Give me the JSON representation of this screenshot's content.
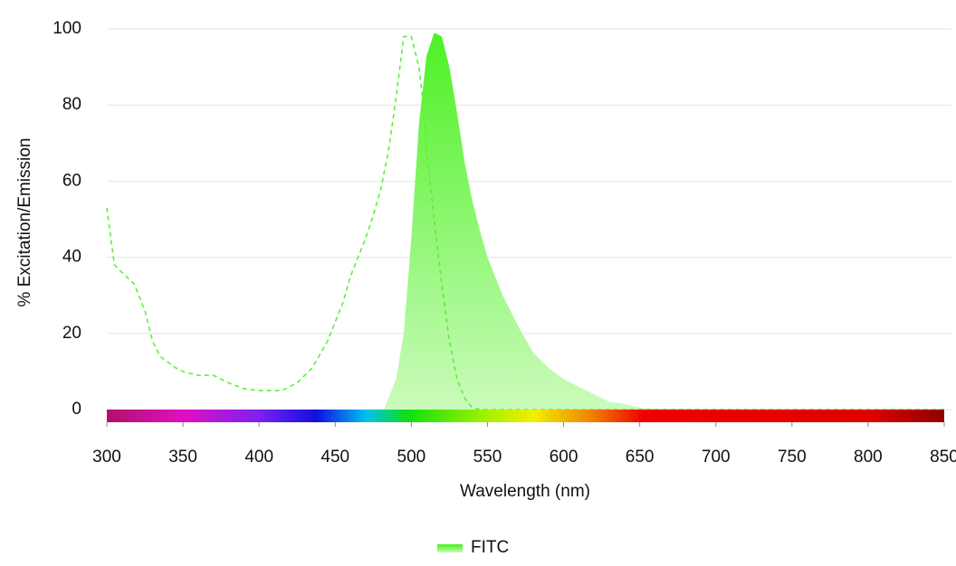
{
  "chart_data": {
    "type": "spectrum",
    "xlabel": "Wavelength (nm)",
    "ylabel": "% Excitation/Emission",
    "xlim": [
      300,
      850
    ],
    "xticks": [
      300,
      350,
      400,
      450,
      500,
      550,
      600,
      650,
      700,
      750,
      800,
      850
    ],
    "ylim": [
      0,
      100
    ],
    "yticks": [
      0,
      20,
      40,
      60,
      80,
      100
    ],
    "grid": true,
    "legend": "bottom",
    "series": [
      {
        "name": "FITC",
        "color": "#5cf03c",
        "excitation": {
          "x": [
            300,
            305,
            310,
            318,
            325,
            330,
            335,
            345,
            350,
            360,
            370,
            380,
            390,
            400,
            415,
            425,
            435,
            445,
            455,
            460,
            470,
            475,
            480,
            485,
            490,
            495,
            500,
            505,
            508,
            510,
            515,
            520,
            525,
            530,
            535,
            540,
            545,
            850
          ],
          "values": [
            53,
            38,
            36,
            33,
            26,
            18,
            14,
            11,
            10,
            9,
            9,
            7,
            5.5,
            5,
            5,
            7,
            11,
            18,
            28,
            35,
            45,
            51,
            58,
            68,
            82,
            98,
            98,
            90,
            80,
            68,
            50,
            33,
            18,
            8,
            3,
            0.5,
            0,
            0
          ]
        },
        "emission": {
          "x": [
            482,
            485,
            490,
            495,
            500,
            505,
            510,
            515,
            520,
            525,
            530,
            535,
            540,
            545,
            550,
            560,
            570,
            580,
            590,
            600,
            610,
            620,
            630,
            640,
            650,
            660,
            700,
            850
          ],
          "values": [
            0,
            3,
            8,
            20,
            45,
            75,
            93,
            99,
            98,
            90,
            78,
            65,
            55,
            47,
            40,
            30,
            22,
            15,
            11,
            8,
            6,
            4,
            2,
            1.5,
            0.5,
            0.2,
            0,
            0
          ]
        }
      }
    ]
  }
}
